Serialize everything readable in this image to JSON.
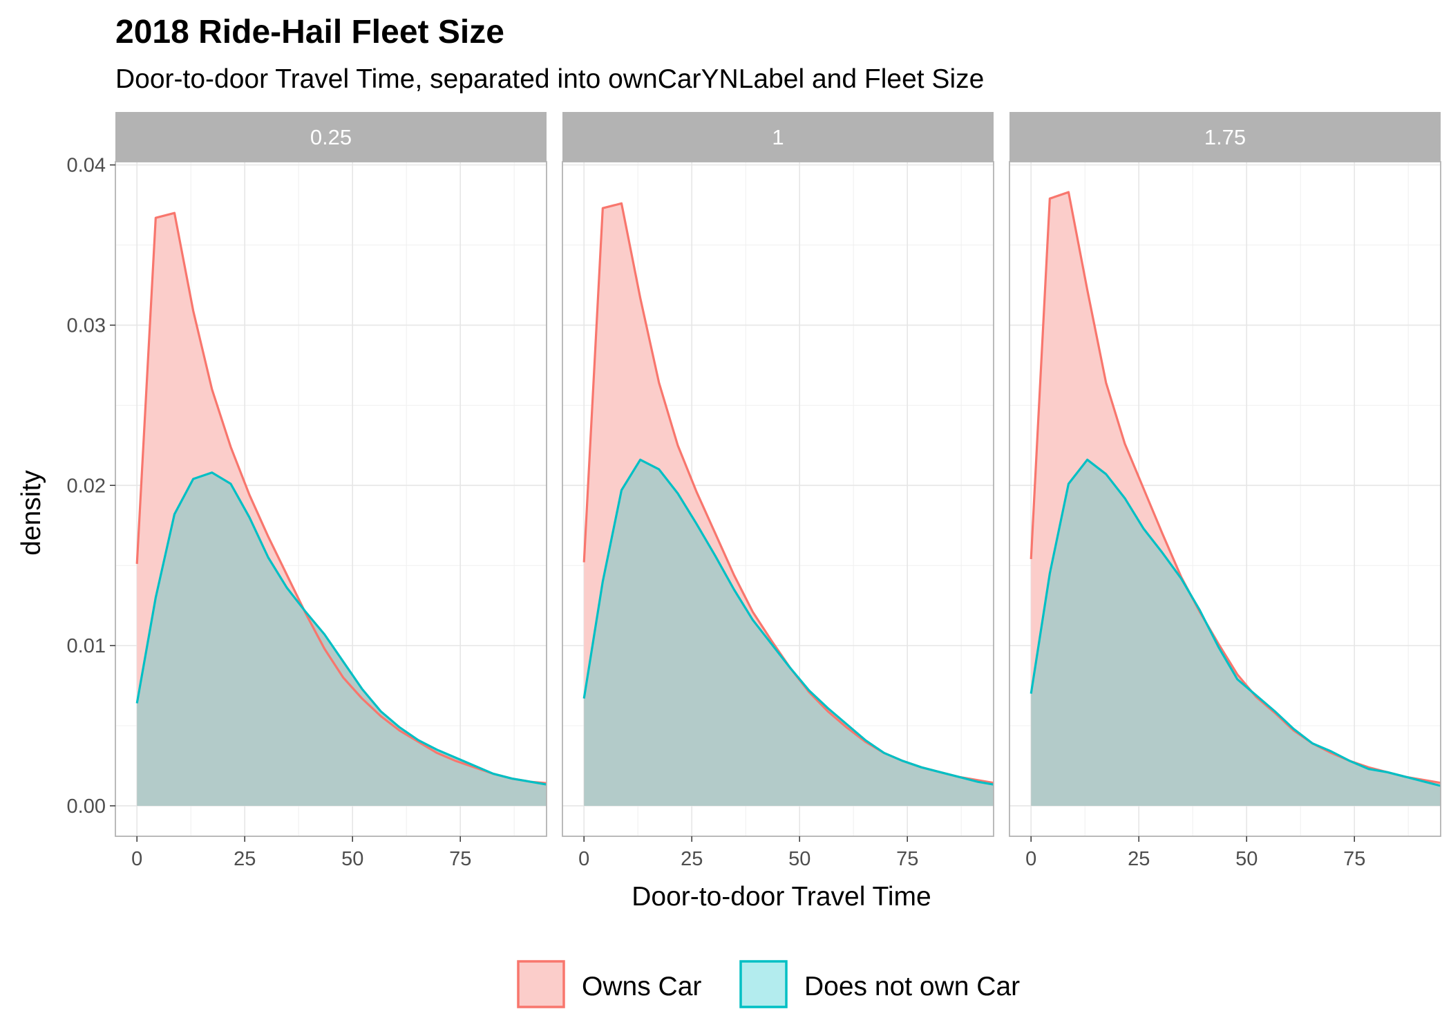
{
  "chart_data": {
    "type": "area",
    "title": "2018 Ride-Hail Fleet Size",
    "subtitle": "Door-to-door Travel Time, separated into ownCarYNLabel and Fleet Size",
    "xlabel": "Door-to-door Travel Time",
    "ylabel": "density",
    "xlim": [
      -5,
      95
    ],
    "ylim": [
      -0.0019,
      0.0402
    ],
    "x_ticks": [
      0,
      25,
      50,
      75
    ],
    "x_tick_labels": [
      "0",
      "25",
      "50",
      "75"
    ],
    "y_ticks": [
      0,
      0.01,
      0.02,
      0.03,
      0.04
    ],
    "y_tick_labels": [
      "0.00",
      "0.01",
      "0.02",
      "0.03",
      "0.04"
    ],
    "grid": true,
    "legend_position": "bottom",
    "legend": [
      "Owns Car",
      "Does not own Car"
    ],
    "colors": {
      "Owns Car": "#F8766D",
      "Does not own Car": "#00BFC4",
      "owns_fill": "#fbcdca",
      "notown_fill": "#b3cbc9",
      "strip_bg": "#b3b3b3",
      "grid": "#e6e6e6",
      "panel_border": "#b3b3b3"
    },
    "x": [
      0,
      4.35,
      8.7,
      13.05,
      17.4,
      21.75,
      26.1,
      30.45,
      34.8,
      39.15,
      43.5,
      47.85,
      52.2,
      56.55,
      60.9,
      65.25,
      69.6,
      73.95,
      78.3,
      82.65,
      87,
      91.35,
      95.7
    ],
    "facets": [
      {
        "label": "0.25",
        "series": [
          {
            "name": "Owns Car",
            "values": [
              0.0151,
              0.0367,
              0.037,
              0.0309,
              0.026,
              0.0224,
              0.0194,
              0.0168,
              0.0144,
              0.012,
              0.0098,
              0.008,
              0.0067,
              0.0056,
              0.0047,
              0.004,
              0.0033,
              0.0028,
              0.0024,
              0.002,
              0.0017,
              0.0015,
              0.0014
            ]
          },
          {
            "name": "Does not own Car",
            "values": [
              0.0064,
              0.013,
              0.0182,
              0.0204,
              0.0208,
              0.0201,
              0.018,
              0.0155,
              0.0136,
              0.0121,
              0.0107,
              0.009,
              0.0073,
              0.0059,
              0.0049,
              0.0041,
              0.0035,
              0.003,
              0.0025,
              0.002,
              0.0017,
              0.0015,
              0.0013
            ]
          }
        ]
      },
      {
        "label": "1",
        "series": [
          {
            "name": "Owns Car",
            "values": [
              0.0152,
              0.0373,
              0.0376,
              0.0317,
              0.0264,
              0.0225,
              0.0196,
              0.017,
              0.0144,
              0.0121,
              0.0103,
              0.0086,
              0.0071,
              0.0059,
              0.0049,
              0.004,
              0.0033,
              0.0028,
              0.0024,
              0.0021,
              0.0018,
              0.0016,
              0.0014
            ]
          },
          {
            "name": "Does not own Car",
            "values": [
              0.0067,
              0.014,
              0.0197,
              0.0216,
              0.021,
              0.0195,
              0.0176,
              0.0156,
              0.0135,
              0.0116,
              0.0101,
              0.0086,
              0.0072,
              0.0061,
              0.0051,
              0.0041,
              0.0033,
              0.0028,
              0.0024,
              0.0021,
              0.0018,
              0.0015,
              0.0013
            ]
          }
        ]
      },
      {
        "label": "1.75",
        "series": [
          {
            "name": "Owns Car",
            "values": [
              0.0154,
              0.0379,
              0.0383,
              0.0322,
              0.0264,
              0.0226,
              0.0198,
              0.017,
              0.0143,
              0.0121,
              0.0101,
              0.0082,
              0.0068,
              0.0058,
              0.0047,
              0.0039,
              0.0033,
              0.0028,
              0.0024,
              0.0021,
              0.0018,
              0.0016,
              0.0014
            ]
          },
          {
            "name": "Does not own Car",
            "values": [
              0.007,
              0.0145,
              0.0201,
              0.0216,
              0.0207,
              0.0192,
              0.0173,
              0.0158,
              0.0142,
              0.0122,
              0.0099,
              0.0079,
              0.0069,
              0.0059,
              0.0048,
              0.0039,
              0.0034,
              0.0028,
              0.0023,
              0.0021,
              0.0018,
              0.0015,
              0.0012
            ]
          }
        ]
      }
    ]
  }
}
